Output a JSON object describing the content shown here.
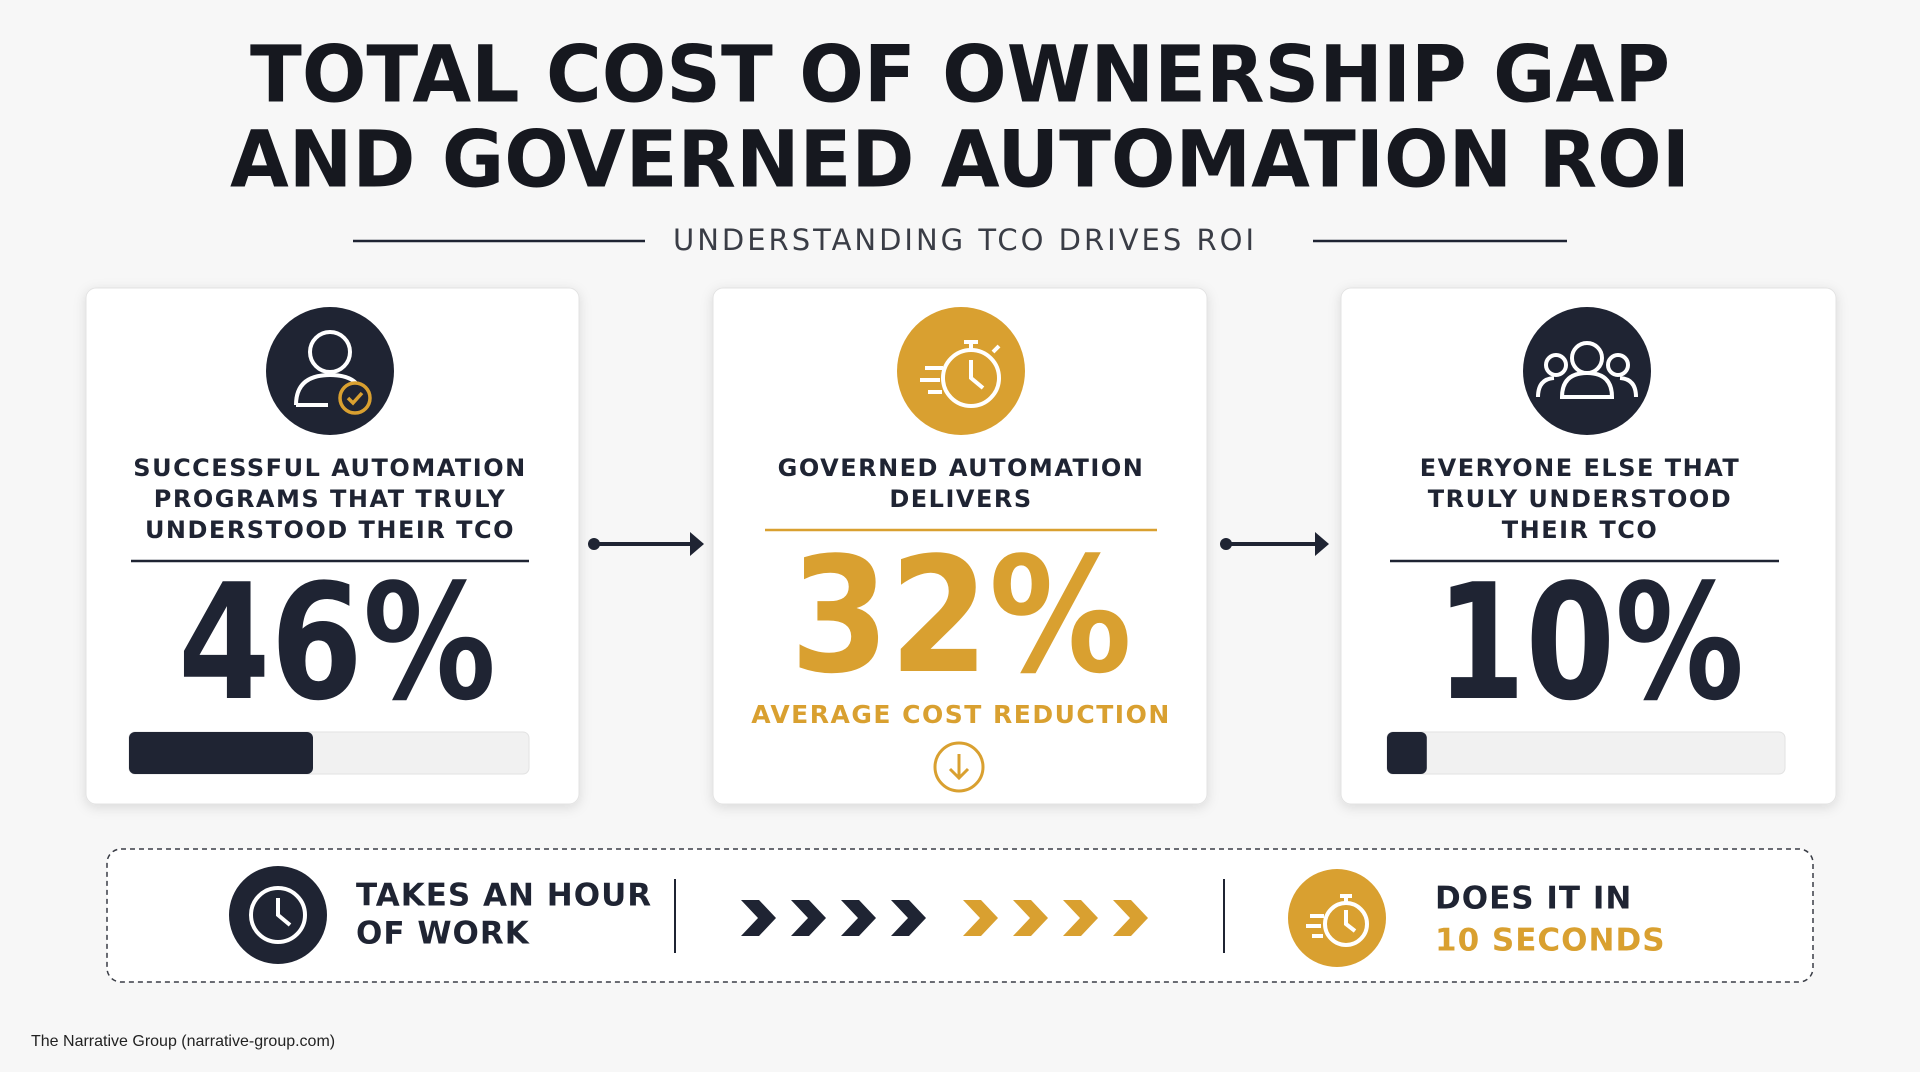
{
  "header": {
    "title_lines": [
      "TOTAL COST OF OWNERSHIP GAP",
      "AND GOVERNED AUTOMATION ROI"
    ],
    "subtitle": "UNDERSTANDING TCO DRIVES ROI"
  },
  "cards": [
    {
      "label_lines": [
        "SUCCESSFUL AUTOMATION",
        "PROGRAMS THAT TRULY",
        "UNDERSTOOD THEIR TCO"
      ],
      "value": 46,
      "value_label": "46%",
      "scale": [
        0,
        100
      ]
    },
    {
      "label_lines": [
        "GOVERNED AUTOMATION",
        "DELIVERS"
      ],
      "value": 32,
      "value_label": "32%",
      "caption": "AVERAGE COST REDUCTION"
    },
    {
      "label_lines": [
        "EVERYONE ELSE THAT",
        "TRULY UNDERSTOOD",
        "THEIR TCO"
      ],
      "value": 10,
      "value_label": "10%",
      "scale": [
        0,
        100
      ]
    }
  ],
  "comparison": {
    "left_lines": [
      "TAKES AN HOUR",
      "OF WORK"
    ],
    "right_lines": [
      "DOES IT IN",
      "10 SECONDS"
    ]
  },
  "footer": "The Narrative Group (narrative-group.com)"
}
